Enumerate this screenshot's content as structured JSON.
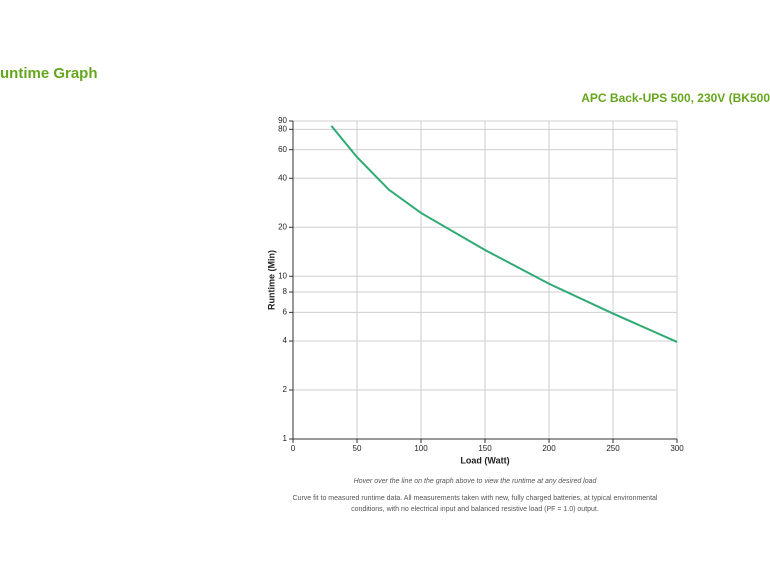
{
  "chart_data": {
    "type": "line",
    "title": "untime Graph",
    "subtitle": "APC Back-UPS 500, 230V (BK500",
    "xlabel": "Load (Watt)",
    "ylabel": "Runtime (Min)",
    "annotations": [
      "Hover over the line on the graph above to view the runtime at any desired load",
      "Curve fit to measured runtime data. All measurements taken with new, fully charged batteries, at typical environmental",
      "conditions, with no electrical input and balanced resistive load (PF = 1.0) output."
    ],
    "x": [
      30,
      50,
      75,
      100,
      150,
      200,
      250,
      300
    ],
    "series": [
      {
        "name": "Runtime",
        "color": "#2eaa72",
        "values": [
          84,
          54,
          34,
          24.5,
          14.5,
          9,
          5.9,
          3.95
        ]
      }
    ],
    "xlim": [
      0,
      300
    ],
    "xticks": [
      0,
      50,
      100,
      150,
      200,
      250,
      300
    ],
    "ylim": [
      1,
      90
    ],
    "yticks": [
      1,
      2,
      4,
      6,
      8,
      10,
      20,
      40,
      60,
      80,
      90
    ],
    "ylog": true,
    "grid": true
  }
}
